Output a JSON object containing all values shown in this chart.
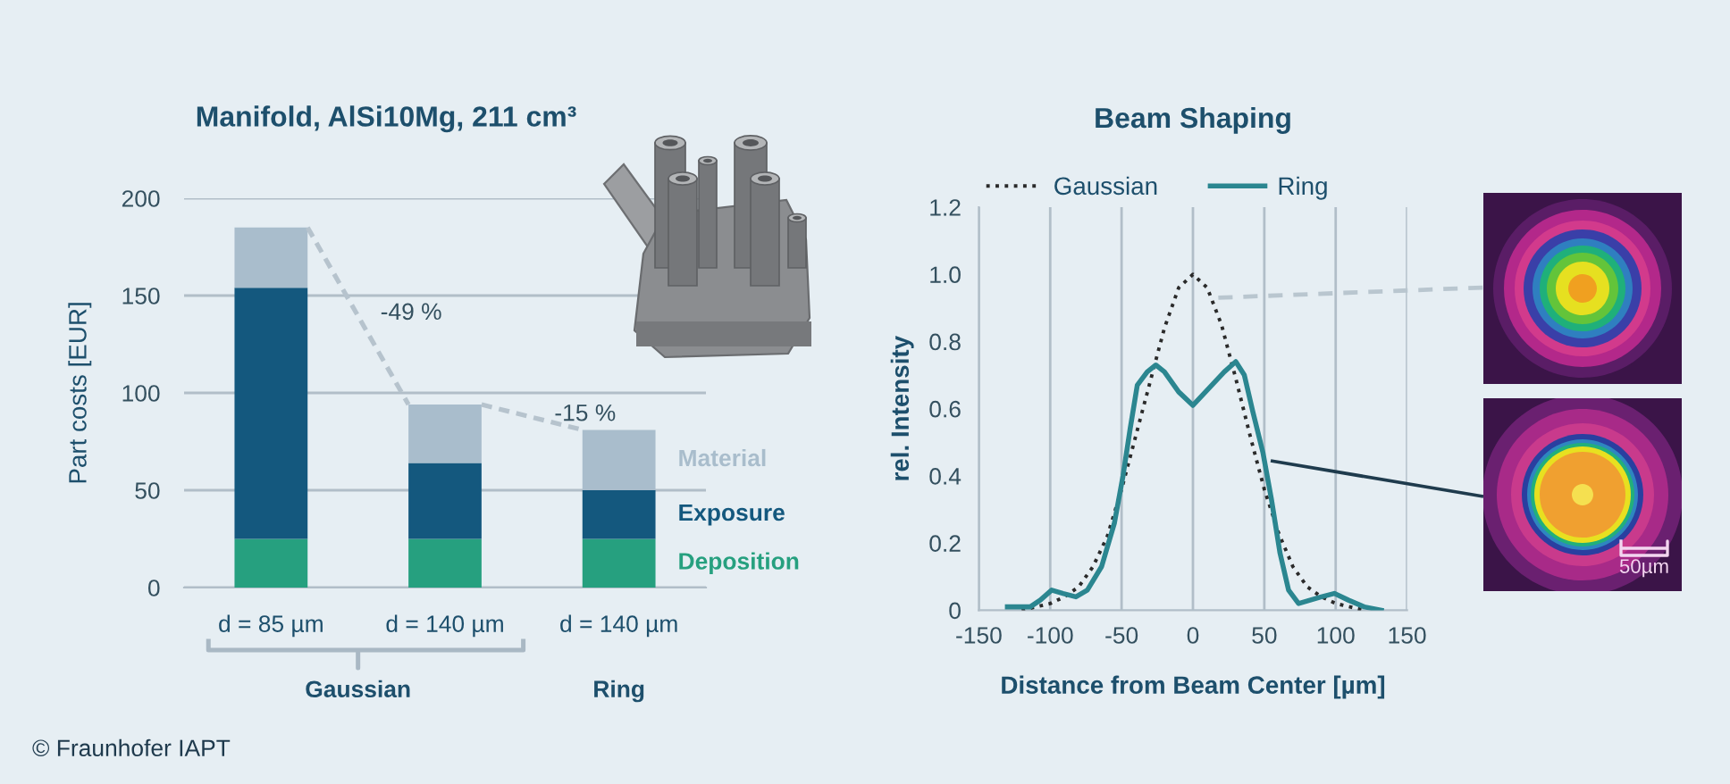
{
  "chart_data": [
    {
      "type": "bar",
      "title": "Manifold, AlSi10Mg, 211 cm³",
      "ylabel": "Part costs [EUR]",
      "categories": [
        "d = 85 µm",
        "d = 140 µm",
        "d = 140 µm"
      ],
      "stacked": true,
      "series": [
        {
          "name": "Deposition",
          "color": "#26a07f",
          "values": [
            25,
            25,
            25
          ]
        },
        {
          "name": "Exposure",
          "color": "#14587e",
          "values": [
            129,
            39,
            25
          ]
        },
        {
          "name": "Material",
          "color": "#a9bdcc",
          "values": [
            31,
            30,
            31
          ]
        }
      ],
      "ylim": [
        0,
        200
      ],
      "yticks": [
        0,
        50,
        100,
        150,
        200
      ],
      "grid": "y",
      "annotations": [
        "-49 %",
        "-15 %",
        "Gaussian",
        "Ring",
        "© Fraunhofer IAPT"
      ]
    },
    {
      "type": "line",
      "title": "Beam Shaping",
      "xlabel": "Distance from Beam Center [µm]",
      "ylabel": "rel. Intensity",
      "series": [
        {
          "name": "Gaussian",
          "color": "#2a2a2a",
          "line_style": "dotted",
          "x": [
            -120,
            -110,
            -100,
            -90,
            -80,
            -70,
            -60,
            -50,
            -40,
            -30,
            -20,
            -10,
            0,
            10,
            20,
            30,
            40,
            50,
            60,
            70,
            80,
            90,
            100,
            110,
            120
          ],
          "values": [
            0,
            0.01,
            0.02,
            0.04,
            0.07,
            0.13,
            0.22,
            0.36,
            0.52,
            0.68,
            0.84,
            0.96,
            1.0,
            0.96,
            0.85,
            0.69,
            0.52,
            0.36,
            0.23,
            0.13,
            0.07,
            0.04,
            0.02,
            0.01,
            0
          ]
        },
        {
          "name": "Ring",
          "color": "#2b8690",
          "line_style": "solid",
          "x": [
            -130,
            -114,
            -107,
            -99,
            -91,
            -82,
            -74,
            -64,
            -55,
            -49,
            -44,
            -39,
            -32,
            -26,
            -20,
            -10,
            0,
            11,
            22,
            30,
            36,
            42,
            49,
            55,
            61,
            67,
            74,
            82,
            90,
            99,
            109,
            120,
            132
          ],
          "values": [
            0.01,
            0.01,
            0.03,
            0.06,
            0.05,
            0.04,
            0.06,
            0.13,
            0.26,
            0.4,
            0.54,
            0.67,
            0.71,
            0.73,
            0.71,
            0.65,
            0.61,
            0.66,
            0.71,
            0.74,
            0.7,
            0.59,
            0.47,
            0.33,
            0.17,
            0.06,
            0.02,
            0.03,
            0.04,
            0.05,
            0.03,
            0.01,
            0
          ]
        }
      ],
      "xlim": [
        -150,
        150
      ],
      "xticks": [
        -150,
        -100,
        -50,
        0,
        50,
        100,
        150
      ],
      "ylim": [
        0,
        1.2
      ],
      "yticks": [
        0,
        0.2,
        0.4,
        0.6,
        0.8,
        {
          "value": 1,
          "label": "1.0"
        },
        1.2
      ],
      "grid": "x",
      "legend": "top",
      "annotations": [
        "50µm"
      ]
    }
  ]
}
